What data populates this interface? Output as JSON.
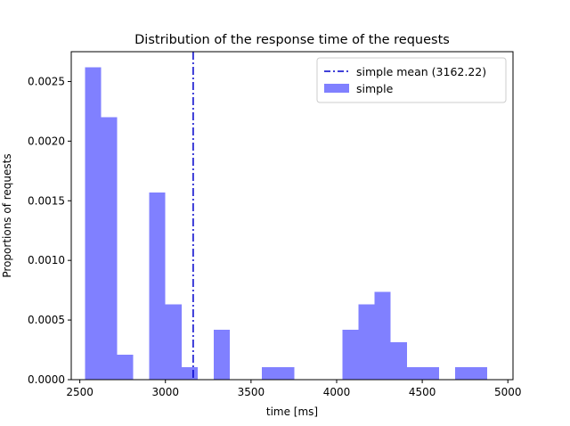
{
  "chart_data": {
    "type": "histogram",
    "title": "Distribution of the response time of the requests",
    "xlabel": "time [ms]",
    "ylabel": "Proportions of requests",
    "xlim": [
      2450,
      5030
    ],
    "ylim": [
      0,
      0.00275
    ],
    "x_ticks": [
      2500,
      3000,
      3500,
      4000,
      4500,
      5000
    ],
    "x_tick_labels": [
      "2500",
      "3000",
      "3500",
      "4000",
      "4500",
      "5000"
    ],
    "y_ticks": [
      0,
      0.0005,
      0.001,
      0.0015,
      0.002,
      0.0025
    ],
    "y_tick_labels": [
      "0.0000",
      "0.0005",
      "0.0010",
      "0.0015",
      "0.0020",
      "0.0025"
    ],
    "bar_color": "#8080ff",
    "mean_color": "#0000cc",
    "series": [
      {
        "name": "simple",
        "bins": [
          {
            "x0": 2530,
            "x1": 2624,
            "value": 0.00262
          },
          {
            "x0": 2624,
            "x1": 2718,
            "value": 0.0022
          },
          {
            "x0": 2718,
            "x1": 2812,
            "value": 0.00021
          },
          {
            "x0": 2812,
            "x1": 2906,
            "value": 0
          },
          {
            "x0": 2906,
            "x1": 3000,
            "value": 0.00157
          },
          {
            "x0": 3000,
            "x1": 3094,
            "value": 0.00063
          },
          {
            "x0": 3094,
            "x1": 3188,
            "value": 0.000105
          },
          {
            "x0": 3188,
            "x1": 3282,
            "value": 0
          },
          {
            "x0": 3282,
            "x1": 3376,
            "value": 0.00042
          },
          {
            "x0": 3376,
            "x1": 3470,
            "value": 0
          },
          {
            "x0": 3470,
            "x1": 3564,
            "value": 0
          },
          {
            "x0": 3564,
            "x1": 3658,
            "value": 0.000105
          },
          {
            "x0": 3658,
            "x1": 3752,
            "value": 0.000105
          },
          {
            "x0": 3752,
            "x1": 3846,
            "value": 0
          },
          {
            "x0": 3846,
            "x1": 3940,
            "value": 0
          },
          {
            "x0": 3940,
            "x1": 4034,
            "value": 0
          },
          {
            "x0": 4034,
            "x1": 4128,
            "value": 0.00042
          },
          {
            "x0": 4128,
            "x1": 4222,
            "value": 0.00063
          },
          {
            "x0": 4222,
            "x1": 4316,
            "value": 0.000735
          },
          {
            "x0": 4316,
            "x1": 4410,
            "value": 0.000315
          },
          {
            "x0": 4410,
            "x1": 4504,
            "value": 0.000105
          },
          {
            "x0": 4504,
            "x1": 4598,
            "value": 0.000105
          },
          {
            "x0": 4598,
            "x1": 4692,
            "value": 0
          },
          {
            "x0": 4692,
            "x1": 4786,
            "value": 0.000105
          },
          {
            "x0": 4786,
            "x1": 4880,
            "value": 0.000105
          }
        ]
      }
    ],
    "mean_line": {
      "name": "simple mean (3162.22)",
      "x": 3162.22,
      "style": "dash-dot"
    },
    "legend": {
      "placement": "upper right",
      "entries": [
        {
          "label": "simple mean (3162.22)",
          "kind": "line"
        },
        {
          "label": "simple",
          "kind": "patch"
        }
      ]
    },
    "grid": false
  }
}
